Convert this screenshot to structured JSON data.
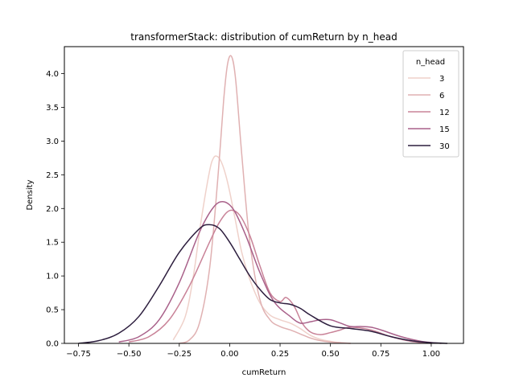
{
  "chart_data": {
    "type": "line",
    "title": "transformerStack: distribution of cumReturn by n_head",
    "xlabel": "cumReturn",
    "ylabel": "Density",
    "xlim": [
      -0.82,
      1.16
    ],
    "ylim": [
      0,
      4.4
    ],
    "xticks": [
      -0.75,
      -0.5,
      -0.25,
      0.0,
      0.25,
      0.5,
      0.75,
      1.0
    ],
    "xtick_labels": [
      "−0.75",
      "−0.50",
      "−0.25",
      "0.00",
      "0.25",
      "0.50",
      "0.75",
      "1.00"
    ],
    "yticks": [
      0.0,
      0.5,
      1.0,
      1.5,
      2.0,
      2.5,
      3.0,
      3.5,
      4.0
    ],
    "ytick_labels": [
      "0.0",
      "0.5",
      "1.0",
      "1.5",
      "2.0",
      "2.5",
      "3.0",
      "3.5",
      "4.0"
    ],
    "grid": false,
    "legend": {
      "title": "n_head",
      "placement": "top-right"
    },
    "series": [
      {
        "name": "3",
        "color": "#efd1ca",
        "x": [
          -0.28,
          -0.22,
          -0.18,
          -0.14,
          -0.1,
          -0.08,
          -0.06,
          -0.04,
          -0.02,
          0.0,
          0.03,
          0.06,
          0.1,
          0.15,
          0.2,
          0.25,
          0.3,
          0.35,
          0.4,
          0.45,
          0.5,
          0.55,
          0.6
        ],
        "y": [
          0.05,
          0.4,
          1.0,
          1.85,
          2.55,
          2.75,
          2.77,
          2.68,
          2.5,
          2.25,
          1.8,
          1.35,
          0.95,
          0.6,
          0.42,
          0.35,
          0.3,
          0.22,
          0.12,
          0.06,
          0.03,
          0.01,
          0.0
        ]
      },
      {
        "name": "6",
        "color": "#e0b1b2",
        "x": [
          -0.25,
          -0.2,
          -0.15,
          -0.1,
          -0.06,
          -0.03,
          -0.01,
          0.01,
          0.03,
          0.06,
          0.1,
          0.15,
          0.2,
          0.25,
          0.3,
          0.35,
          0.4,
          0.45,
          0.5,
          0.55,
          0.6
        ],
        "y": [
          0.0,
          0.05,
          0.3,
          1.1,
          2.4,
          3.6,
          4.15,
          4.25,
          3.9,
          2.8,
          1.5,
          0.65,
          0.35,
          0.25,
          0.2,
          0.14,
          0.08,
          0.04,
          0.02,
          0.01,
          0.0
        ]
      },
      {
        "name": "12",
        "color": "#c98398",
        "x": [
          -0.5,
          -0.4,
          -0.3,
          -0.2,
          -0.1,
          -0.05,
          0.0,
          0.05,
          0.1,
          0.15,
          0.2,
          0.25,
          0.28,
          0.32,
          0.36,
          0.4,
          0.45,
          0.5,
          0.55,
          0.6,
          0.7,
          0.8,
          0.9,
          1.0
        ],
        "y": [
          0.02,
          0.1,
          0.35,
          0.85,
          1.5,
          1.8,
          1.97,
          1.9,
          1.6,
          1.15,
          0.75,
          0.62,
          0.68,
          0.55,
          0.3,
          0.17,
          0.13,
          0.16,
          0.2,
          0.24,
          0.2,
          0.1,
          0.03,
          0.0
        ]
      },
      {
        "name": "15",
        "color": "#a9618a",
        "x": [
          -0.55,
          -0.45,
          -0.35,
          -0.25,
          -0.15,
          -0.08,
          -0.03,
          0.02,
          0.08,
          0.15,
          0.22,
          0.3,
          0.35,
          0.4,
          0.45,
          0.5,
          0.55,
          0.6,
          0.65,
          0.7,
          0.75,
          0.85,
          0.95,
          1.05
        ],
        "y": [
          0.02,
          0.1,
          0.35,
          0.9,
          1.65,
          2.02,
          2.1,
          1.98,
          1.6,
          1.05,
          0.62,
          0.4,
          0.3,
          0.32,
          0.35,
          0.35,
          0.3,
          0.25,
          0.25,
          0.24,
          0.2,
          0.1,
          0.03,
          0.0
        ]
      },
      {
        "name": "30",
        "color": "#2d1e3e",
        "x": [
          -0.75,
          -0.65,
          -0.55,
          -0.45,
          -0.35,
          -0.25,
          -0.15,
          -0.1,
          -0.05,
          0.0,
          0.05,
          0.1,
          0.15,
          0.2,
          0.25,
          0.3,
          0.35,
          0.4,
          0.5,
          0.6,
          0.7,
          0.8,
          0.9,
          1.0,
          1.08
        ],
        "y": [
          0.0,
          0.04,
          0.15,
          0.4,
          0.85,
          1.35,
          1.7,
          1.76,
          1.7,
          1.5,
          1.25,
          1.0,
          0.8,
          0.65,
          0.6,
          0.58,
          0.52,
          0.42,
          0.26,
          0.22,
          0.18,
          0.1,
          0.04,
          0.01,
          0.0
        ]
      }
    ]
  }
}
